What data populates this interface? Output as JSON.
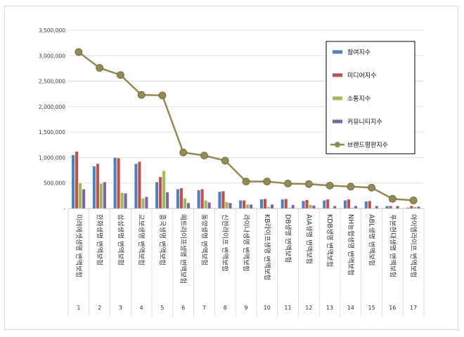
{
  "chart_data": {
    "type": "bar",
    "title": "",
    "xlabel": "",
    "ylabel": "",
    "ylim": [
      0,
      3500000
    ],
    "yticks": [
      "-",
      "500,000",
      "1,000,000",
      "1,500,000",
      "2,000,000",
      "2,500,000",
      "3,000,000",
      "3,500,000"
    ],
    "grid": true,
    "legend_position": "right",
    "categories": [
      "미래에셋생명 변액보험",
      "한화생명 변액보험",
      "삼성생명 변액보험",
      "교보생명 변액보험",
      "흥국생명 변액보험",
      "메트라이프생명 변액보험",
      "동양생명 변액보험",
      "신한라이프 변액보험",
      "라이나생명 변액보험",
      "KB라이프생명 변액보험",
      "DB생명 변액보험",
      "AIA생명 변액보험",
      "KDB생명 변액보험",
      "NH농협생명 변액보험",
      "ABL생명 변액보험",
      "푸본현대생명 변액보험",
      "아이엠라이프 변액보험"
    ],
    "ranks": [
      "1",
      "2",
      "3",
      "4",
      "5",
      "6",
      "7",
      "8",
      "9",
      "10",
      "11",
      "12",
      "13",
      "14",
      "15",
      "16",
      "17"
    ],
    "series": [
      {
        "name": "참여지수",
        "color": "#4f81bd",
        "kind": "bar",
        "values": [
          1050000,
          830000,
          1000000,
          880000,
          520000,
          380000,
          360000,
          330000,
          160000,
          180000,
          180000,
          150000,
          160000,
          160000,
          140000,
          50000,
          20000
        ]
      },
      {
        "name": "미디어지수",
        "color": "#c0504d",
        "kind": "bar",
        "values": [
          1120000,
          880000,
          990000,
          920000,
          620000,
          400000,
          380000,
          340000,
          160000,
          190000,
          190000,
          170000,
          180000,
          180000,
          150000,
          50000,
          50000
        ]
      },
      {
        "name": "소통지수",
        "color": "#9bbb59",
        "kind": "bar",
        "values": [
          500000,
          490000,
          310000,
          200000,
          740000,
          200000,
          160000,
          130000,
          80000,
          30000,
          20000,
          70000,
          10000,
          20000,
          10000,
          10000,
          30000
        ]
      },
      {
        "name": "커뮤니티지수",
        "color": "#8064a2",
        "kind": "bar",
        "values": [
          380000,
          520000,
          300000,
          230000,
          320000,
          110000,
          120000,
          110000,
          80000,
          80000,
          70000,
          60000,
          50000,
          50000,
          50000,
          50000,
          40000
        ]
      },
      {
        "name": "브랜드평판지수",
        "color": "#948a54",
        "kind": "line",
        "values": [
          3070000,
          2760000,
          2620000,
          2230000,
          2220000,
          1100000,
          1040000,
          940000,
          530000,
          530000,
          490000,
          480000,
          450000,
          430000,
          410000,
          190000,
          160000
        ]
      }
    ]
  }
}
